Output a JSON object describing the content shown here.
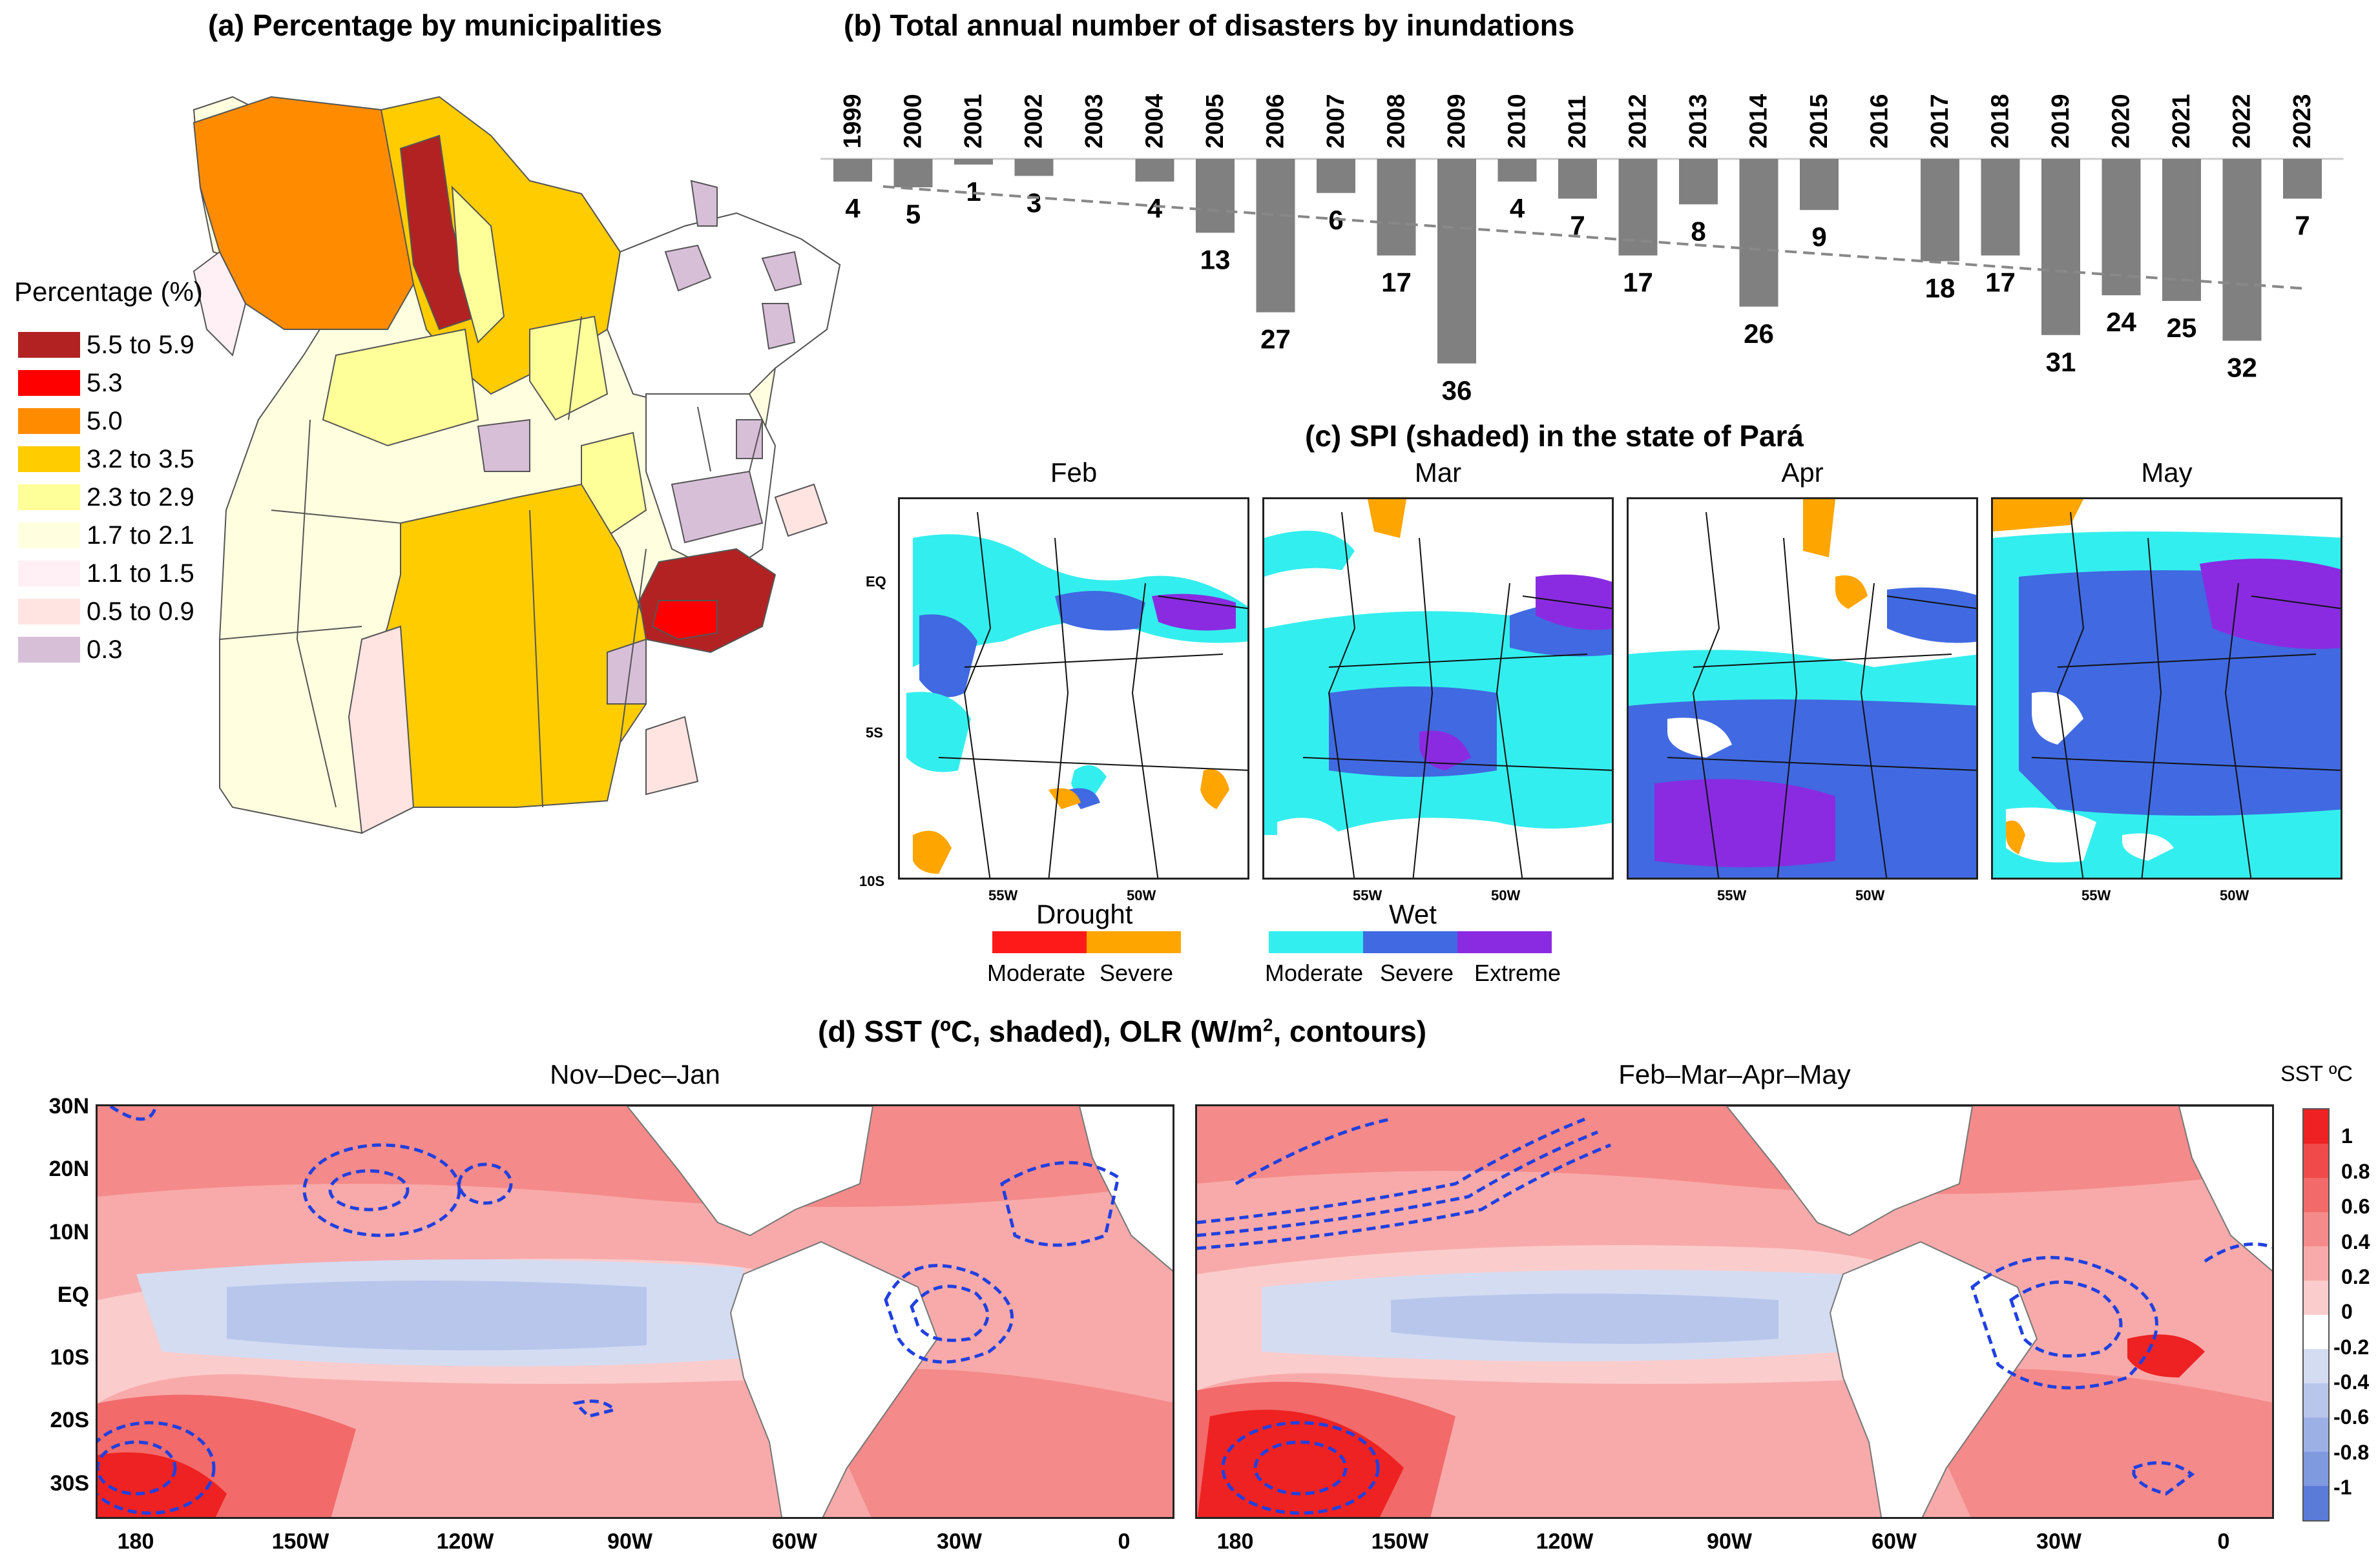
{
  "panel_a": {
    "title": "(a) Percentage by municipalities",
    "legend_title": "Percentage (%)",
    "legend": [
      {
        "label": "5.5 to 5.9",
        "color": "#b22222"
      },
      {
        "label": "5.3",
        "color": "#ff0000"
      },
      {
        "label": "5.0",
        "color": "#ff8c00"
      },
      {
        "label": "3.2 to 3.5",
        "color": "#ffcc00"
      },
      {
        "label": "2.3 to 2.9",
        "color": "#ffff99"
      },
      {
        "label": "1.7 to 2.1",
        "color": "#ffffe0"
      },
      {
        "label": "1.1 to 1.5",
        "color": "#fff0f5"
      },
      {
        "label": "0.5 to 0.9",
        "color": "#ffe4e1"
      },
      {
        "label": "0.3",
        "color": "#d8bfd8"
      }
    ]
  },
  "panel_b": {
    "title": "(b) Total annual number of disasters by inundations"
  },
  "chart_data": [
    {
      "type": "bar",
      "title": "(b) Total annual number of disasters by inundations",
      "categories": [
        "1999",
        "2000",
        "2001",
        "2002",
        "2003",
        "2004",
        "2005",
        "2006",
        "2007",
        "2008",
        "2009",
        "2010",
        "2011",
        "2012",
        "2013",
        "2014",
        "2015",
        "2016",
        "2017",
        "2018",
        "2019",
        "2020",
        "2021",
        "2022",
        "2023"
      ],
      "values": [
        4,
        5,
        1,
        3,
        0,
        4,
        13,
        27,
        6,
        17,
        36,
        4,
        7,
        17,
        8,
        26,
        9,
        0,
        18,
        17,
        31,
        24,
        25,
        32,
        7
      ],
      "value_labels": [
        "4",
        "5",
        "1",
        "3",
        "",
        "4",
        "13",
        "27",
        "6",
        "17",
        "36",
        "4",
        "7",
        "17",
        "8",
        "26",
        "9",
        "",
        "18",
        "17",
        "31",
        "24",
        "25",
        "32",
        "7"
      ],
      "orientation": "downward",
      "trend_line": "dashed linear trend",
      "bar_color": "#808080"
    }
  ],
  "panel_c": {
    "title": "(c) SPI (shaded) in the state of Pará",
    "months": [
      "Feb",
      "Mar",
      "Apr",
      "May"
    ],
    "lat_labels": [
      "EQ",
      "5S",
      "10S"
    ],
    "lon_labels": [
      "55W",
      "50W"
    ],
    "drought_title": "Drought",
    "drought_labels": [
      "Moderate",
      "Severe"
    ],
    "drought_colors": [
      "#ff1a1a",
      "#ffa500"
    ],
    "wet_title": "Wet",
    "wet_labels": [
      "Moderate",
      "Severe",
      "Extreme"
    ],
    "wet_colors": [
      "#33eeee",
      "#4169e1",
      "#8a2be2"
    ]
  },
  "panel_d": {
    "title_main": "(d) SST (ºC, shaded), OLR (W/m",
    "title_sup": "2",
    "title_end": ", contours)",
    "maps": [
      "Nov–Dec–Jan",
      "Feb–Mar–Apr–May"
    ],
    "lat_labels": [
      "30N",
      "20N",
      "10N",
      "EQ",
      "10S",
      "20S",
      "30S"
    ],
    "lon_labels": [
      "180",
      "150W",
      "120W",
      "90W",
      "60W",
      "30W",
      "0"
    ],
    "colorbar_title": "SST ºC",
    "colorbar_labels": [
      "1",
      "0.8",
      "0.6",
      "0.4",
      "0.2",
      "0",
      "-0.2",
      "-0.4",
      "-0.6",
      "-0.8",
      "-1"
    ],
    "colorbar_colors": [
      "#ee2222",
      "#f04a4a",
      "#f26a6a",
      "#f58a8a",
      "#f8aaaa",
      "#fbcccc",
      "#ffffff",
      "#d4dcf2",
      "#b8c6ec",
      "#9cb0e6",
      "#809ae0",
      "#5a7bd8"
    ]
  }
}
